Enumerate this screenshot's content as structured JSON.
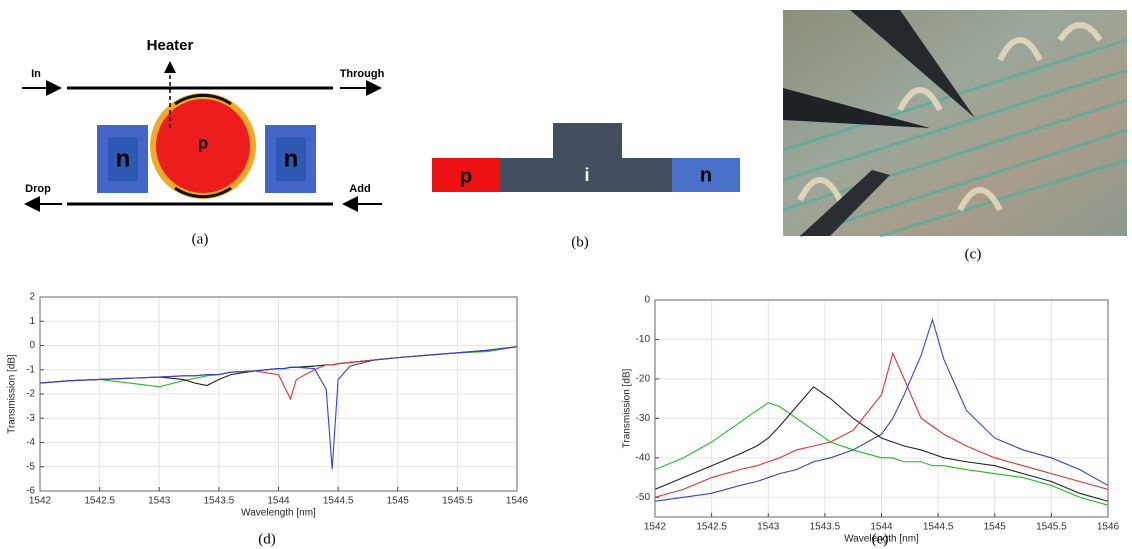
{
  "diagram_a": {
    "heater": "Heater",
    "in": "In",
    "through": "Through",
    "drop": "Drop",
    "add": "Add",
    "left_doping": "n",
    "ring_doping": "p",
    "right_doping": "n",
    "caption": "(a)"
  },
  "diagram_b": {
    "p": "p",
    "i": "i",
    "n": "n",
    "caption": "(b)"
  },
  "photo_c": {
    "caption": "(c)"
  },
  "chart_data": [
    {
      "type": "line",
      "caption": "(d)",
      "x_label": "Wavelength [nm]",
      "y_label": "Transmission [dB]",
      "x": [
        1542,
        1542.25,
        1542.5,
        1542.75,
        1543,
        1543.2,
        1543.3,
        1543.4,
        1543.5,
        1543.6,
        1543.8,
        1544,
        1544.05,
        1544.1,
        1544.15,
        1544.3,
        1544.4,
        1544.45,
        1544.5,
        1544.6,
        1544.8,
        1545,
        1545.25,
        1545.5,
        1545.75,
        1546
      ],
      "series": [
        {
          "color": "#22bb22",
          "values": [
            -1.55,
            -1.45,
            -1.4,
            -1.55,
            -1.7,
            -1.45,
            -1.35,
            -1.25,
            -1.2,
            -1.1,
            -1.05,
            -0.95,
            -0.95,
            -0.9,
            -0.9,
            -0.85,
            -0.8,
            -0.8,
            -0.75,
            -0.7,
            -0.6,
            -0.5,
            -0.4,
            -0.3,
            -0.25,
            -0.05
          ]
        },
        {
          "color": "#222222",
          "values": [
            -1.55,
            -1.45,
            -1.4,
            -1.35,
            -1.3,
            -1.4,
            -1.55,
            -1.65,
            -1.4,
            -1.2,
            -1.05,
            -0.95,
            -0.95,
            -0.9,
            -0.9,
            -0.85,
            -0.8,
            -0.8,
            -0.75,
            -0.7,
            -0.6,
            -0.5,
            -0.4,
            -0.3,
            -0.2,
            -0.05
          ]
        },
        {
          "color": "#dd3333",
          "values": [
            -1.55,
            -1.45,
            -1.4,
            -1.35,
            -1.3,
            -1.25,
            -1.25,
            -1.2,
            -1.2,
            -1.1,
            -1.05,
            -1.2,
            -1.7,
            -2.2,
            -1.4,
            -1.0,
            -0.8,
            -0.8,
            -0.75,
            -0.7,
            -0.6,
            -0.5,
            -0.4,
            -0.3,
            -0.2,
            -0.05
          ]
        },
        {
          "color": "#3344cc",
          "values": [
            -1.55,
            -1.45,
            -1.4,
            -1.35,
            -1.3,
            -1.25,
            -1.25,
            -1.2,
            -1.2,
            -1.1,
            -1.05,
            -0.95,
            -0.95,
            -0.9,
            -0.9,
            -0.95,
            -1.8,
            -5.1,
            -1.4,
            -0.85,
            -0.6,
            -0.5,
            -0.4,
            -0.3,
            -0.2,
            -0.05
          ]
        }
      ],
      "xlim": [
        1542,
        1546
      ],
      "ylim": [
        -6,
        2
      ],
      "xticks": [
        1542,
        1542.5,
        1543,
        1543.5,
        1544,
        1544.5,
        1545,
        1545.5,
        1546
      ],
      "yticks": [
        -6,
        -5,
        -4,
        -3,
        -2,
        -1,
        0,
        1,
        2
      ],
      "grid": true
    },
    {
      "type": "line",
      "caption": "(e)",
      "x_label": "Wavelength [nm]",
      "y_label": "Transmission [dB]",
      "x": [
        1542,
        1542.25,
        1542.5,
        1542.75,
        1542.9,
        1543,
        1543.1,
        1543.25,
        1543.4,
        1543.55,
        1543.75,
        1544,
        1544.1,
        1544.2,
        1544.35,
        1544.45,
        1544.55,
        1544.75,
        1545,
        1545.25,
        1545.5,
        1545.75,
        1546
      ],
      "series": [
        {
          "color": "#22bb22",
          "values": [
            -43,
            -40,
            -36,
            -31,
            -28,
            -26,
            -27,
            -30,
            -33,
            -36,
            -38,
            -40,
            -40,
            -41,
            -41,
            -42,
            -42,
            -43,
            -44,
            -45,
            -47,
            -50,
            -52
          ]
        },
        {
          "color": "#222222",
          "values": [
            -48,
            -45,
            -42,
            -39,
            -37,
            -35,
            -32,
            -27,
            -22,
            -25,
            -30,
            -35,
            -36,
            -37,
            -38,
            -39,
            -40,
            -41,
            -42,
            -44,
            -46,
            -49,
            -51
          ]
        },
        {
          "color": "#dd3333",
          "values": [
            -50,
            -48,
            -45,
            -43,
            -42,
            -41,
            -40,
            -38,
            -37,
            -36,
            -33,
            -24,
            -13.5,
            -20,
            -30,
            -32,
            -34,
            -37,
            -40,
            -42,
            -44,
            -46,
            -48
          ]
        },
        {
          "color": "#3344cc",
          "values": [
            -51,
            -50,
            -49,
            -47,
            -46,
            -45,
            -44,
            -43,
            -41,
            -40,
            -38,
            -34,
            -30,
            -24,
            -14,
            -5,
            -15,
            -28,
            -35,
            -38,
            -40,
            -43,
            -47
          ]
        }
      ],
      "xlim": [
        1542,
        1546
      ],
      "ylim": [
        -55,
        0
      ],
      "xticks": [
        1542,
        1542.5,
        1543,
        1543.5,
        1544,
        1544.5,
        1545,
        1545.5,
        1546
      ],
      "yticks": [
        -50,
        -40,
        -30,
        -20,
        -10,
        0
      ],
      "grid": true
    }
  ]
}
